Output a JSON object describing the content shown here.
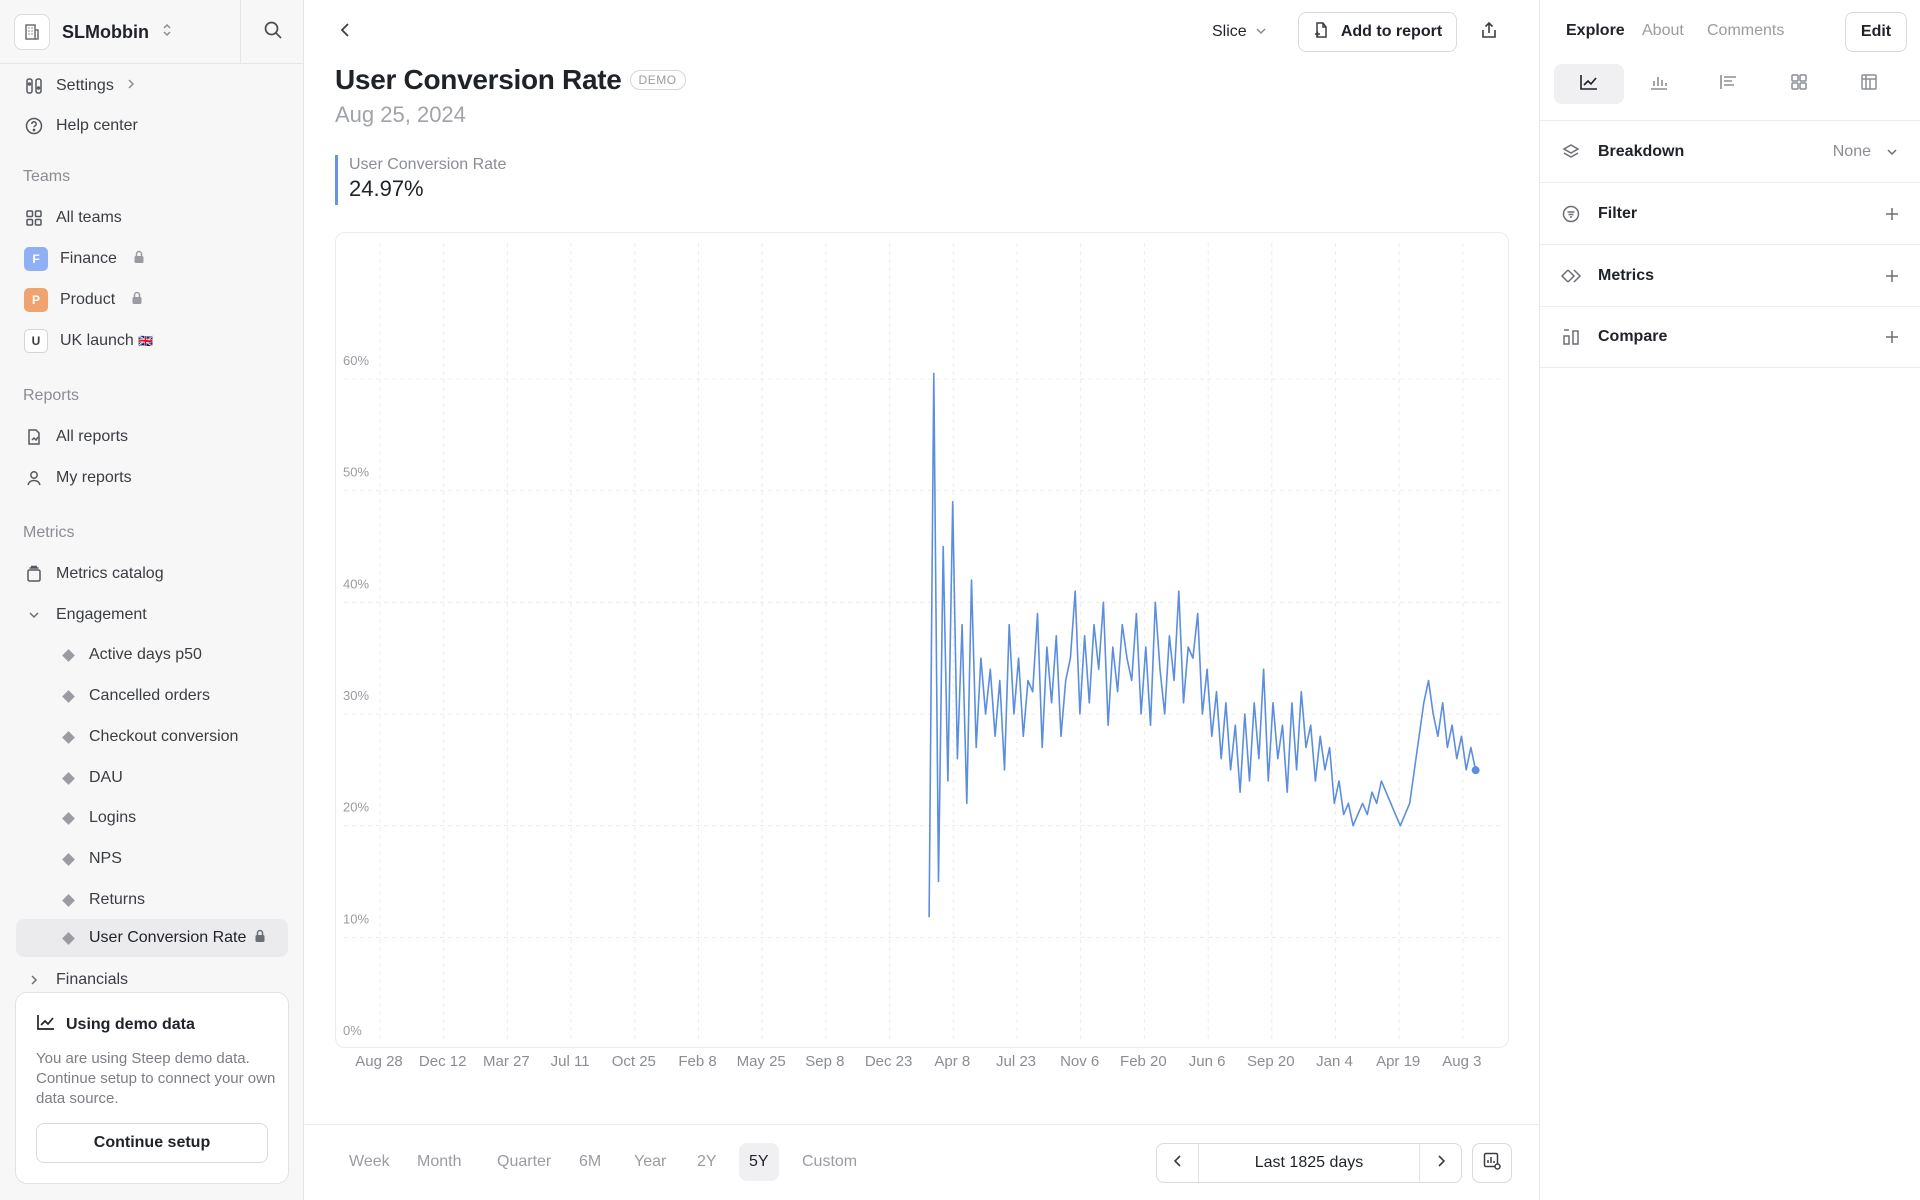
{
  "workspace": {
    "name": "SLMobbin"
  },
  "sidebar": {
    "top_items": [
      {
        "label": "Settings",
        "icon": "settings-icon"
      },
      {
        "label": "Help center",
        "icon": "help-icon"
      }
    ],
    "teams_header": "Teams",
    "teams": [
      {
        "label": "All teams",
        "icon": "grid-icon"
      },
      {
        "label": "Finance",
        "badge": "F",
        "color": "#8fb0f2"
      },
      {
        "label": "Product",
        "badge": "P",
        "color": "#f0a36e"
      },
      {
        "label": "UK launch",
        "badge": "U",
        "flag": "🇬🇧"
      }
    ],
    "reports_header": "Reports",
    "reports": [
      {
        "label": "All reports",
        "icon": "report-icon"
      },
      {
        "label": "My reports",
        "icon": "person-icon"
      }
    ],
    "metrics_header": "Metrics",
    "metrics_catalog": "Metrics catalog",
    "engagement_group": "Engagement",
    "engagement_items": [
      "Active days p50",
      "Cancelled orders",
      "Checkout conversion",
      "DAU",
      "Logins",
      "NPS",
      "Returns",
      "User Conversion Rate"
    ],
    "financials_group": "Financials"
  },
  "demo_card": {
    "title": "Using demo data",
    "text": "You are using Steep demo data. Continue setup to connect your own data source.",
    "button": "Continue setup"
  },
  "header": {
    "slice_label": "Slice",
    "add_to_report": "Add to report"
  },
  "page": {
    "title": "User Conversion Rate",
    "badge": "DEMO",
    "date": "Aug 25, 2024",
    "kpi_label": "User Conversion Rate",
    "kpi_value": "24.97%"
  },
  "range": {
    "tabs": [
      "Week",
      "Month",
      "Quarter",
      "6M",
      "Year",
      "2Y",
      "5Y",
      "Custom"
    ],
    "active": "5Y",
    "pager_label": "Last 1825 days"
  },
  "right_panel": {
    "tabs": [
      "Explore",
      "About",
      "Comments"
    ],
    "active_tab": "Explore",
    "edit": "Edit",
    "viz_icons": [
      "line-chart-icon",
      "bar-chart-icon",
      "horizontal-bar-icon",
      "table-grid-icon",
      "pivot-icon"
    ],
    "rows": [
      {
        "label": "Breakdown",
        "value": "None",
        "icon": "layers-icon",
        "action": "chevron-down-icon"
      },
      {
        "label": "Filter",
        "value": "",
        "icon": "filter-icon",
        "action": "plus-icon"
      },
      {
        "label": "Metrics",
        "value": "",
        "icon": "metrics-icon",
        "action": "plus-icon"
      },
      {
        "label": "Compare",
        "value": "",
        "icon": "compare-icon",
        "action": "plus-icon"
      }
    ]
  },
  "chart_data": {
    "type": "line",
    "title": "",
    "xlabel": "",
    "ylabel": "",
    "x_tick_labels": [
      "Aug 28",
      "Dec 12",
      "Mar 27",
      "Jul 11",
      "Oct 25",
      "Feb 8",
      "May 25",
      "Sep 8",
      "Dec 23",
      "Apr 8",
      "Jul 23",
      "Nov 6",
      "Feb 20",
      "Jun 6",
      "Sep 20",
      "Jan 4",
      "Apr 19",
      "Aug 3"
    ],
    "y_tick_labels": [
      "0%",
      "10%",
      "20%",
      "30%",
      "40%",
      "50%",
      "60%"
    ],
    "ylim": [
      0,
      60
    ],
    "grid": true,
    "series_color": "#5b8ee0",
    "series": [
      {
        "name": "User Conversion Rate",
        "x_start_tick": 8.62,
        "x_end_tick": 17.2,
        "values_pct": [
          11.8,
          60.5,
          15,
          45,
          24,
          49,
          26,
          38,
          22,
          42,
          27,
          35,
          30,
          34,
          28,
          33,
          25,
          38,
          30,
          35,
          28,
          33,
          32,
          39,
          27,
          36,
          31,
          37,
          28,
          33,
          35,
          41,
          30,
          37,
          31,
          38,
          34,
          40,
          29,
          36,
          32,
          38,
          35,
          33,
          39,
          30,
          36,
          29,
          40,
          34,
          30,
          37,
          33,
          41,
          31,
          36,
          35,
          39,
          30,
          34,
          28,
          32,
          26,
          31,
          25,
          29,
          23,
          30,
          24,
          31,
          26,
          34,
          24,
          31,
          26,
          29,
          23,
          31,
          25,
          32,
          27,
          29,
          24,
          28,
          25,
          27,
          22,
          24,
          21,
          22,
          20,
          21,
          22,
          21,
          23,
          22,
          24,
          23,
          22,
          21,
          20,
          21,
          22,
          25,
          28,
          31,
          33,
          30,
          28,
          31,
          27,
          29,
          26,
          28,
          25,
          27,
          24.97
        ],
        "last_value": 24.97
      }
    ]
  }
}
